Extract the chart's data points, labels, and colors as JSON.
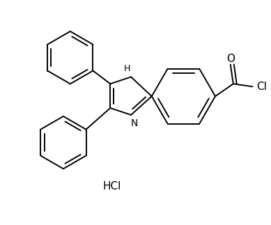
{
  "background_color": "#ffffff",
  "line_color": "#000000",
  "line_width": 1.4,
  "figsize": [
    3.89,
    3.23
  ],
  "dpi": 100,
  "label_O": "O",
  "label_Cl": "Cl",
  "label_N": "N",
  "label_H": "H",
  "label_HCl": "HCl",
  "font_size": 10
}
